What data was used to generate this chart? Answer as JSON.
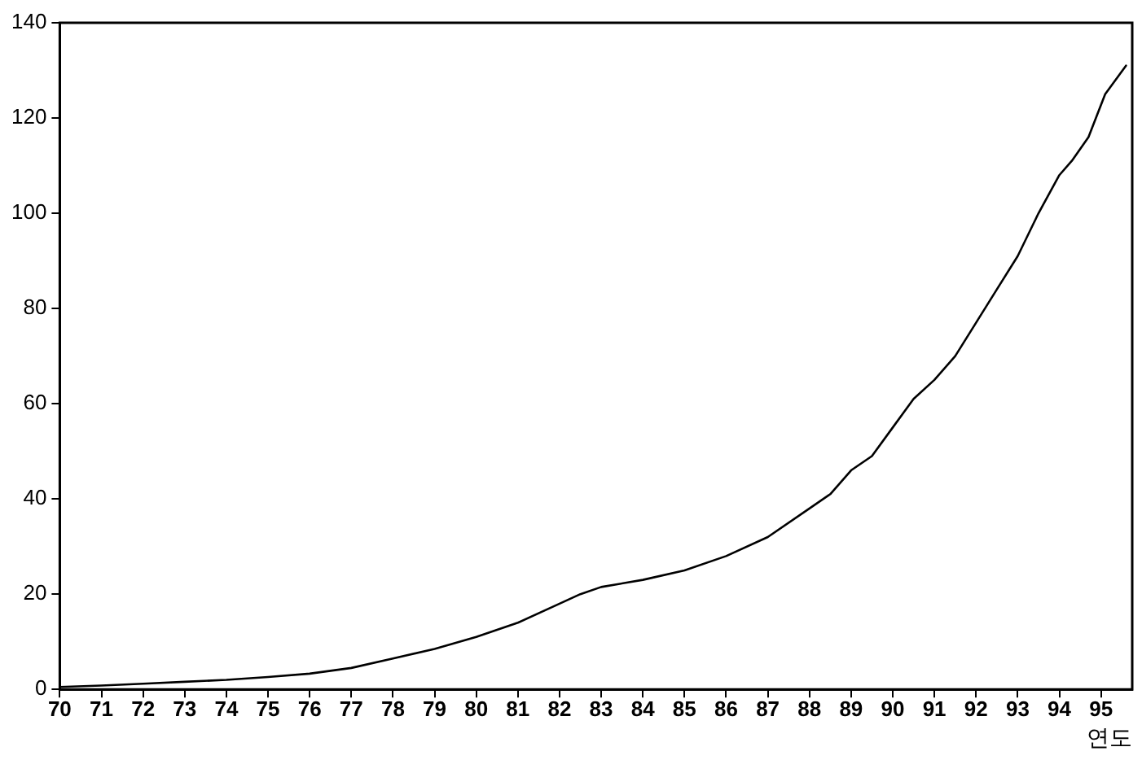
{
  "chart_data": {
    "type": "line",
    "xlabel": "연도",
    "x": [
      70,
      71,
      72,
      73,
      74,
      75,
      76,
      77,
      78,
      79,
      80,
      81,
      82,
      82.5,
      83,
      84,
      85,
      86,
      87,
      88,
      88.5,
      89,
      89.5,
      90,
      90.5,
      91,
      91.5,
      92,
      92.5,
      93,
      93.5,
      94,
      94.3,
      94.7,
      95.1,
      95.6
    ],
    "series": [
      {
        "color": "#000000",
        "values": [
          0.5,
          0.8,
          1.2,
          1.6,
          2,
          2.6,
          3.3,
          4.5,
          6.5,
          8.5,
          11,
          14,
          18,
          20,
          21.5,
          23,
          25,
          28,
          32,
          38,
          41,
          46,
          49,
          55,
          61,
          65,
          70,
          77,
          84,
          91,
          100,
          108,
          111,
          116,
          125,
          131
        ]
      }
    ],
    "xlim": [
      70,
      95.75
    ],
    "xticks": [
      70,
      71,
      72,
      73,
      74,
      75,
      76,
      77,
      78,
      79,
      80,
      81,
      82,
      83,
      84,
      85,
      86,
      87,
      88,
      89,
      90,
      91,
      92,
      93,
      94,
      95
    ],
    "ylim": [
      0,
      140
    ],
    "yticks": [
      0,
      20,
      40,
      60,
      80,
      100,
      120,
      140
    ],
    "grid": false,
    "legend": false,
    "marker": "none",
    "line_style": "solid"
  }
}
